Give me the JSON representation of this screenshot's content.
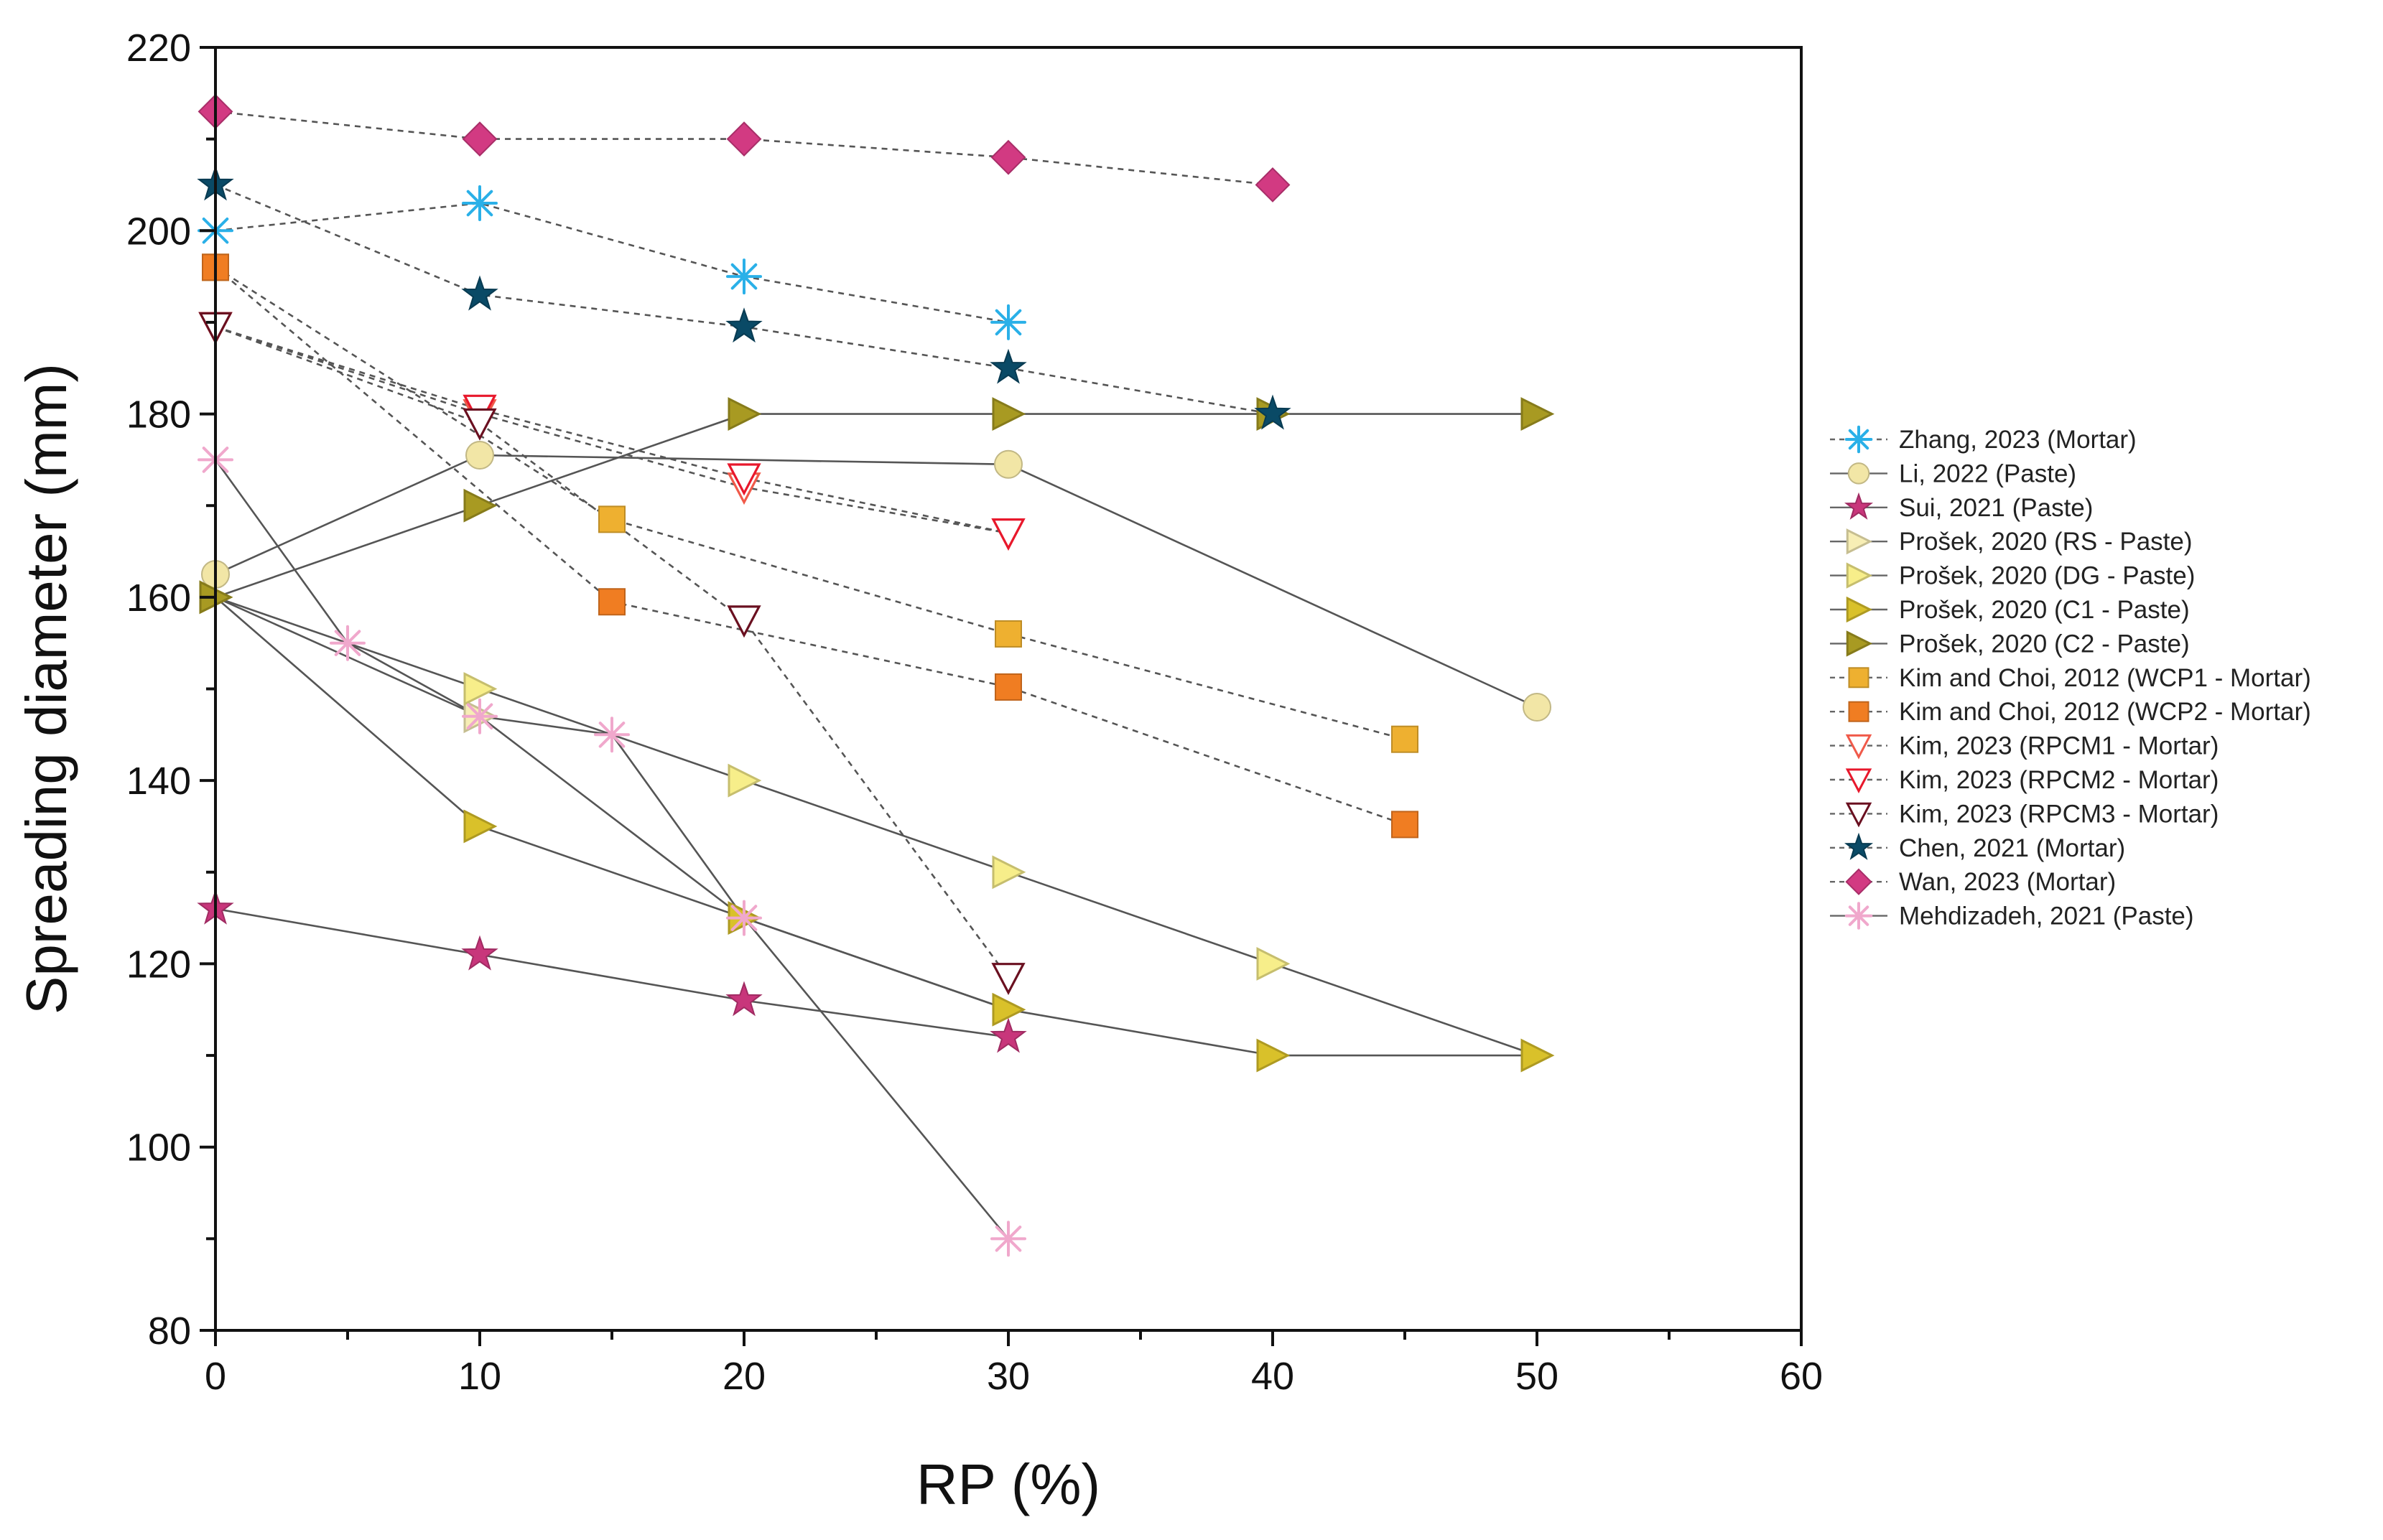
{
  "chart_data": {
    "type": "line",
    "title": "",
    "xlabel": "RP (%)",
    "ylabel": "Spreading diameter (mm)",
    "xlim": [
      0,
      60
    ],
    "ylim": [
      80,
      220
    ],
    "xticks": [
      0,
      10,
      20,
      30,
      40,
      50,
      60
    ],
    "yticks": [
      80,
      100,
      120,
      140,
      160,
      180,
      200,
      220
    ],
    "grid": false,
    "legend_position": "right",
    "series": [
      {
        "name": "Zhang, 2023 (Mortar)",
        "marker": "asterisk",
        "filled": false,
        "color": "#2ab0e8",
        "line": "dashed",
        "points": [
          [
            0,
            200
          ],
          [
            10,
            203
          ],
          [
            20,
            195
          ],
          [
            30,
            190
          ]
        ]
      },
      {
        "name": "Li, 2022 (Paste)",
        "marker": "circle",
        "filled": true,
        "color": "#f2e6a6",
        "line": "solid",
        "points": [
          [
            0,
            162.5
          ],
          [
            10,
            175.5
          ],
          [
            30,
            174.5
          ],
          [
            50,
            148
          ]
        ]
      },
      {
        "name": "Sui, 2021 (Paste)",
        "marker": "star",
        "filled": true,
        "color": "#c8367b",
        "line": "solid",
        "points": [
          [
            0,
            126
          ],
          [
            10,
            121
          ],
          [
            20,
            116
          ],
          [
            30,
            112
          ]
        ]
      },
      {
        "name": "Prošek, 2020 (RS - Paste)",
        "marker": "triangle-right",
        "filled": true,
        "color": "#f7eeb5",
        "line": "solid",
        "points": [
          [
            0,
            160
          ],
          [
            10,
            147
          ],
          [
            20,
            125
          ],
          [
            30,
            115
          ]
        ]
      },
      {
        "name": "Prošek, 2020 (DG - Paste)",
        "marker": "triangle-right",
        "filled": true,
        "color": "#f7ee8a",
        "line": "solid",
        "points": [
          [
            0,
            160
          ],
          [
            10,
            150
          ],
          [
            20,
            140
          ],
          [
            30,
            130
          ],
          [
            40,
            120
          ],
          [
            50,
            110
          ]
        ]
      },
      {
        "name": "Prošek, 2020 (C1 - Paste)",
        "marker": "triangle-right",
        "filled": true,
        "color": "#d9c12a",
        "line": "solid",
        "points": [
          [
            0,
            160
          ],
          [
            10,
            135
          ],
          [
            20,
            125
          ],
          [
            30,
            115
          ],
          [
            40,
            110
          ],
          [
            50,
            110
          ]
        ]
      },
      {
        "name": "Prošek, 2020 (C2 - Paste)",
        "marker": "triangle-right",
        "filled": true,
        "color": "#a89a22",
        "line": "solid",
        "points": [
          [
            0,
            160
          ],
          [
            10,
            170
          ],
          [
            20,
            180
          ],
          [
            30,
            180
          ],
          [
            40,
            180
          ],
          [
            50,
            180
          ]
        ]
      },
      {
        "name": "Kim and Choi, 2012  (WCP1 - Mortar)",
        "marker": "square",
        "filled": true,
        "color": "#eeb030",
        "line": "dashed",
        "points": [
          [
            0,
            196
          ],
          [
            15,
            168.5
          ],
          [
            30,
            156
          ],
          [
            45,
            144.5
          ]
        ]
      },
      {
        "name": "Kim and Choi, 2012 (WCP2 - Mortar)",
        "marker": "square",
        "filled": true,
        "color": "#f07d22",
        "line": "dashed",
        "points": [
          [
            0,
            196
          ],
          [
            15,
            159.5
          ],
          [
            30,
            150.2
          ],
          [
            45,
            135.2
          ]
        ]
      },
      {
        "name": "Kim, 2023 (RPCM1 - Mortar)",
        "marker": "triangle-down",
        "filled": false,
        "color": "#f05a4a",
        "line": "dashed",
        "points": [
          [
            0,
            189.5
          ],
          [
            10,
            180
          ],
          [
            20,
            172
          ],
          [
            30,
            167
          ]
        ]
      },
      {
        "name": "Kim, 2023 (RPCM2 - Mortar)",
        "marker": "triangle-down",
        "filled": false,
        "color": "#e8182c",
        "line": "dashed",
        "points": [
          [
            0,
            189.5
          ],
          [
            10,
            180.5
          ],
          [
            20,
            173
          ],
          [
            30,
            167
          ]
        ]
      },
      {
        "name": "Kim, 2023 (RPCM3 - Mortar)",
        "marker": "triangle-down",
        "filled": false,
        "color": "#6a1020",
        "line": "dashed",
        "points": [
          [
            0,
            189.5
          ],
          [
            10,
            179
          ],
          [
            20,
            157.5
          ],
          [
            30,
            118.5
          ]
        ]
      },
      {
        "name": "Chen, 2021 (Mortar)",
        "marker": "star",
        "filled": true,
        "color": "#0a4a66",
        "line": "dashed",
        "points": [
          [
            0,
            205
          ],
          [
            10,
            193
          ],
          [
            20,
            189.5
          ],
          [
            30,
            185
          ],
          [
            40,
            180
          ]
        ]
      },
      {
        "name": "Wan, 2023 (Mortar)",
        "marker": "diamond",
        "filled": true,
        "color": "#d23a82",
        "line": "dashed",
        "points": [
          [
            0,
            213
          ],
          [
            10,
            210
          ],
          [
            20,
            210
          ],
          [
            30,
            208
          ],
          [
            40,
            205
          ]
        ]
      },
      {
        "name": "Mehdizadeh, 2021 (Paste)",
        "marker": "asterisk",
        "filled": false,
        "color": "#f0a8cc",
        "line": "solid",
        "points": [
          [
            0,
            175
          ],
          [
            5,
            155
          ],
          [
            10,
            147
          ],
          [
            15,
            145
          ],
          [
            20,
            125
          ],
          [
            30,
            90
          ]
        ]
      }
    ]
  }
}
